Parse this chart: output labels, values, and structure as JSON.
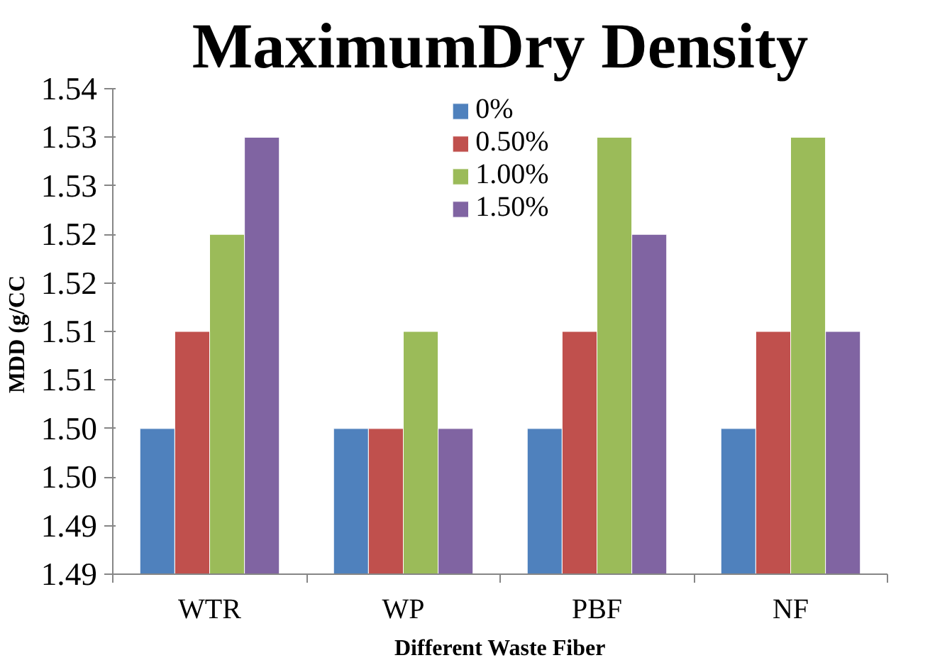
{
  "chart_data": {
    "type": "bar",
    "title": "MaximumDry Density",
    "xlabel": "Different Waste Fiber",
    "ylabel": "MDD  (g/CC",
    "categories": [
      "WTR",
      "WP",
      "PBF",
      "NF"
    ],
    "series": [
      {
        "name": "0%",
        "color": "#4f81bd",
        "values": [
          1.505,
          1.505,
          1.505,
          1.505
        ]
      },
      {
        "name": "0.50%",
        "color": "#c0504d",
        "values": [
          1.515,
          1.505,
          1.515,
          1.515
        ]
      },
      {
        "name": "1.00%",
        "color": "#9bbb59",
        "values": [
          1.525,
          1.515,
          1.535,
          1.535
        ]
      },
      {
        "name": "1.50%",
        "color": "#8064a2",
        "values": [
          1.535,
          1.505,
          1.525,
          1.515
        ]
      }
    ],
    "ylim": [
      1.49,
      1.54
    ],
    "yticks": [
      {
        "value": 1.49,
        "label": "1.49"
      },
      {
        "value": 1.495,
        "label": "1.49"
      },
      {
        "value": 1.5,
        "label": "1.50"
      },
      {
        "value": 1.505,
        "label": "1.50"
      },
      {
        "value": 1.51,
        "label": "1.51"
      },
      {
        "value": 1.515,
        "label": "1.51"
      },
      {
        "value": 1.52,
        "label": "1.52"
      },
      {
        "value": 1.525,
        "label": "1.52"
      },
      {
        "value": 1.53,
        "label": "1.53"
      },
      {
        "value": 1.535,
        "label": "1.53"
      },
      {
        "value": 1.54,
        "label": "1.54"
      }
    ],
    "grid": false,
    "legend": "top"
  }
}
